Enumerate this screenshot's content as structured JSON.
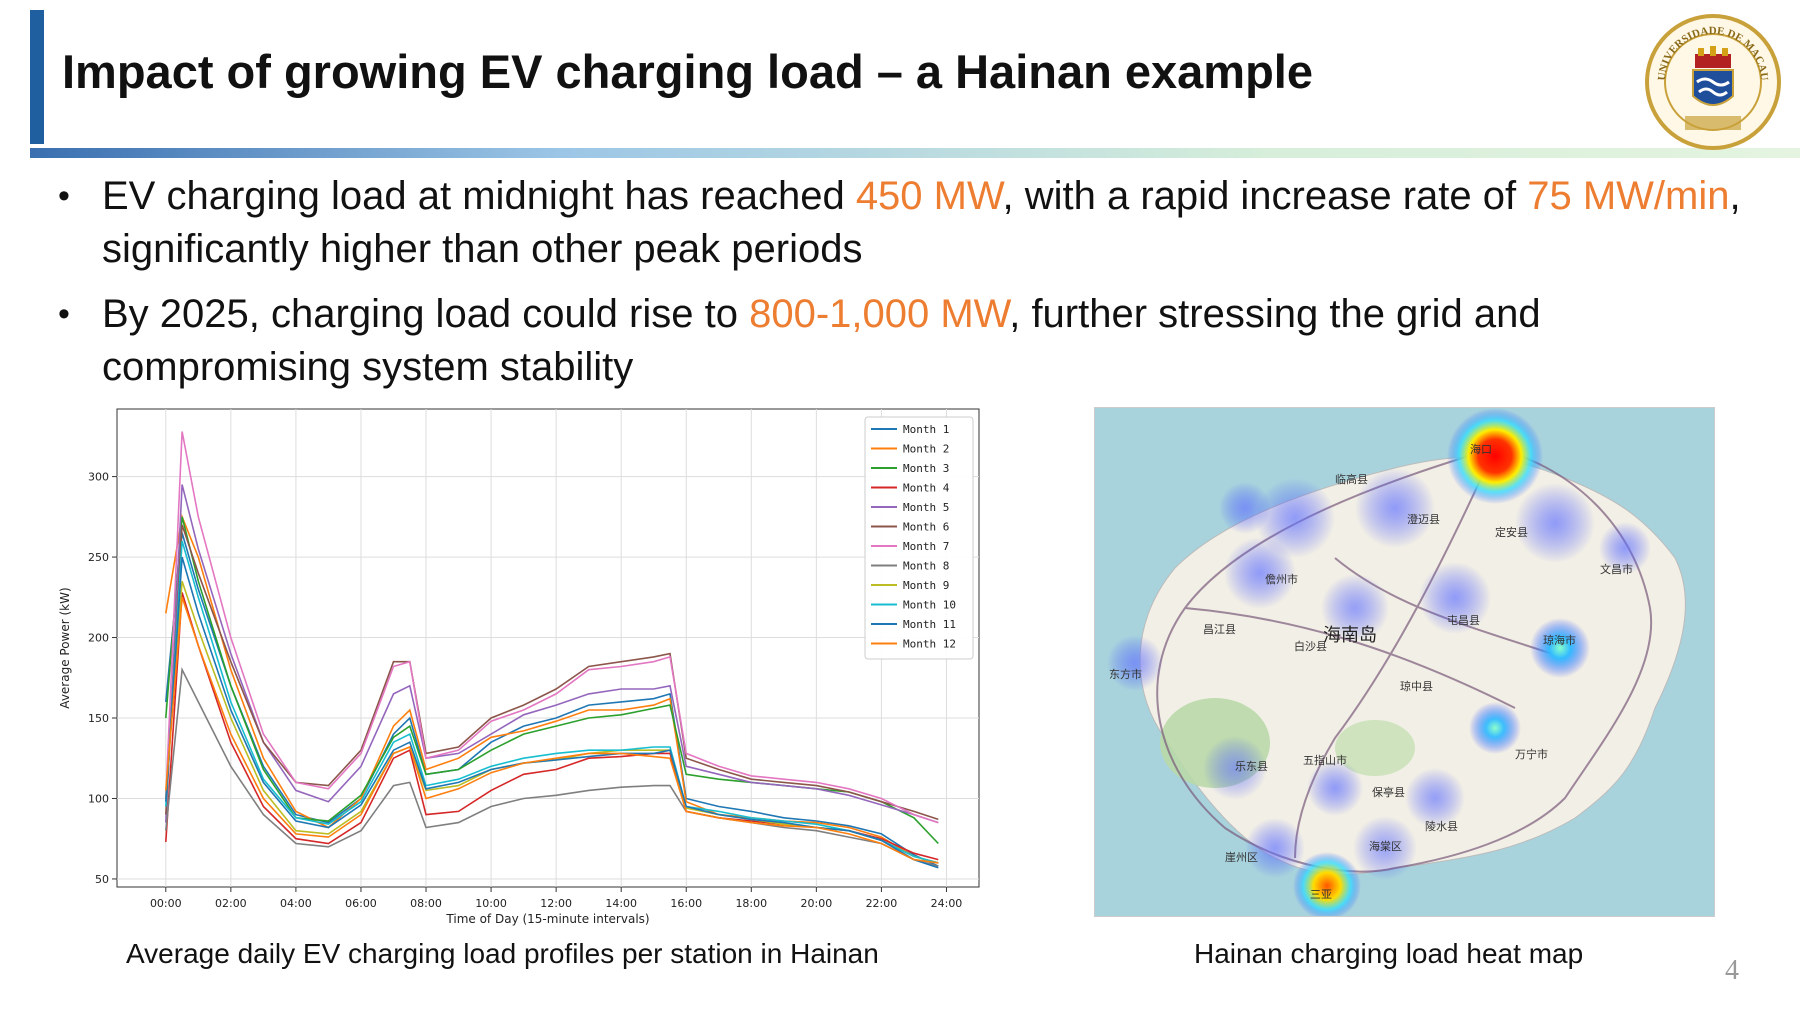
{
  "slide": {
    "title": "Impact of growing EV charging load – a Hainan example",
    "page_number": "4",
    "logo_text": "UNIVERSIDADE DE MACAU"
  },
  "bullets": [
    {
      "parts": [
        {
          "text": "EV charging load at midnight has reached ",
          "highlight": false
        },
        {
          "text": "450 MW",
          "highlight": true
        },
        {
          "text": ", with a rapid increase rate of ",
          "highlight": false
        },
        {
          "text": "75 MW/min",
          "highlight": true
        },
        {
          "text": ", significantly higher than other peak periods",
          "highlight": false
        }
      ]
    },
    {
      "parts": [
        {
          "text": "By 2025, charging load could rise to ",
          "highlight": false
        },
        {
          "text": "800-1,000 MW",
          "highlight": true
        },
        {
          "text": ", further stressing the grid and compromising system stability",
          "highlight": false
        }
      ]
    }
  ],
  "captions": {
    "chart": "Average daily EV charging load profiles per station in Hainan",
    "map": "Hainan charging load heat map"
  },
  "colors": {
    "accent": "#1f5fa0",
    "highlight": "#ed7d31"
  },
  "map": {
    "center_label": "海南岛",
    "cities": [
      "海口",
      "临高县",
      "澄迈县",
      "定安县",
      "文昌市",
      "儋州市",
      "屯昌县",
      "琼海市",
      "白沙县",
      "昌江县",
      "东方市",
      "琼中县",
      "万宁市",
      "五指山市",
      "乐东县",
      "保亭县",
      "陵水县",
      "三亚",
      "崖州区",
      "海棠区"
    ],
    "hotspot_intensity": [
      1.0,
      0.9,
      0.5,
      0.5,
      0.55,
      0.5,
      0.5,
      0.5,
      0.45,
      0.45,
      0.4,
      0.4,
      0.45
    ]
  },
  "chart_data": {
    "type": "line",
    "xlabel": "Time of Day (15-minute intervals)",
    "ylabel": "Average Power (kW)",
    "xlim": [
      -1.5,
      25
    ],
    "ylim": [
      45,
      342
    ],
    "xticks": [
      0,
      2,
      4,
      6,
      8,
      10,
      12,
      14,
      16,
      18,
      20,
      22,
      24
    ],
    "xtick_labels": [
      "00:00",
      "02:00",
      "04:00",
      "06:00",
      "08:00",
      "10:00",
      "12:00",
      "14:00",
      "16:00",
      "18:00",
      "20:00",
      "22:00",
      "24:00"
    ],
    "yticks": [
      50,
      100,
      150,
      200,
      250,
      300
    ],
    "grid": true,
    "legend_position": "top-right",
    "x": [
      0,
      0.5,
      1,
      2,
      3,
      4,
      5,
      6,
      7,
      7.5,
      8,
      9,
      10,
      11,
      12,
      13,
      14,
      15,
      15.5,
      16,
      17,
      18,
      19,
      20,
      21,
      22,
      23,
      23.75
    ],
    "series": [
      {
        "name": "Month 1",
        "color": "#1f77b4",
        "values": [
          160,
          265,
          230,
          170,
          120,
          90,
          85,
          100,
          140,
          150,
          115,
          118,
          135,
          145,
          150,
          158,
          160,
          162,
          165,
          100,
          95,
          92,
          88,
          86,
          83,
          78,
          65,
          58
        ]
      },
      {
        "name": "Month 2",
        "color": "#ff7f0e",
        "values": [
          215,
          275,
          250,
          180,
          125,
          92,
          82,
          100,
          145,
          155,
          118,
          125,
          138,
          142,
          148,
          155,
          155,
          158,
          162,
          98,
          90,
          88,
          86,
          85,
          82,
          76,
          64,
          60
        ]
      },
      {
        "name": "Month 3",
        "color": "#2ca02c",
        "values": [
          150,
          275,
          235,
          170,
          118,
          88,
          86,
          102,
          138,
          145,
          115,
          118,
          130,
          140,
          145,
          150,
          152,
          156,
          158,
          115,
          112,
          110,
          108,
          106,
          104,
          98,
          88,
          72
        ]
      },
      {
        "name": "Month 4",
        "color": "#d62728",
        "values": [
          73,
          228,
          195,
          135,
          95,
          75,
          72,
          85,
          125,
          130,
          90,
          92,
          105,
          115,
          118,
          125,
          126,
          128,
          128,
          92,
          88,
          86,
          84,
          82,
          80,
          75,
          66,
          62
        ]
      },
      {
        "name": "Month 5",
        "color": "#9467bd",
        "values": [
          85,
          295,
          255,
          190,
          135,
          105,
          98,
          120,
          165,
          170,
          125,
          128,
          140,
          152,
          158,
          165,
          168,
          168,
          170,
          120,
          115,
          110,
          108,
          106,
          102,
          96,
          90,
          85
        ]
      },
      {
        "name": "Month 6",
        "color": "#8c564b",
        "values": [
          90,
          270,
          240,
          185,
          135,
          110,
          108,
          130,
          185,
          185,
          128,
          132,
          150,
          158,
          168,
          182,
          185,
          188,
          190,
          125,
          118,
          112,
          110,
          108,
          104,
          98,
          92,
          87
        ]
      },
      {
        "name": "Month 7",
        "color": "#e377c2",
        "values": [
          100,
          328,
          275,
          200,
          140,
          110,
          106,
          128,
          182,
          185,
          125,
          130,
          148,
          155,
          165,
          180,
          182,
          185,
          188,
          128,
          120,
          114,
          112,
          110,
          106,
          100,
          90,
          85
        ]
      },
      {
        "name": "Month 8",
        "color": "#7f7f7f",
        "values": [
          80,
          180,
          160,
          120,
          90,
          72,
          70,
          80,
          108,
          110,
          82,
          85,
          95,
          100,
          102,
          105,
          107,
          108,
          108,
          92,
          88,
          85,
          82,
          80,
          76,
          72,
          62,
          58
        ]
      },
      {
        "name": "Month 9",
        "color": "#bcbd22",
        "values": [
          100,
          235,
          205,
          150,
          105,
          80,
          78,
          92,
          128,
          132,
          105,
          108,
          118,
          122,
          124,
          128,
          130,
          130,
          130,
          94,
          90,
          87,
          84,
          82,
          80,
          74,
          64,
          60
        ]
      },
      {
        "name": "Month 10",
        "color": "#17becf",
        "values": [
          95,
          260,
          225,
          160,
          112,
          88,
          84,
          98,
          135,
          140,
          108,
          112,
          120,
          125,
          128,
          130,
          130,
          132,
          132,
          95,
          92,
          88,
          86,
          84,
          80,
          74,
          64,
          60
        ]
      },
      {
        "name": "Month 11",
        "color": "#1f77b4",
        "values": [
          98,
          250,
          215,
          155,
          110,
          86,
          82,
          96,
          130,
          135,
          106,
          110,
          118,
          122,
          124,
          126,
          128,
          128,
          130,
          95,
          90,
          87,
          85,
          82,
          80,
          74,
          62,
          57
        ]
      },
      {
        "name": "Month 12",
        "color": "#ff7f0e",
        "values": [
          105,
          225,
          195,
          140,
          100,
          78,
          76,
          90,
          128,
          132,
          100,
          106,
          116,
          122,
          125,
          128,
          128,
          126,
          125,
          92,
          88,
          85,
          83,
          82,
          78,
          72,
          62,
          60
        ]
      }
    ]
  }
}
